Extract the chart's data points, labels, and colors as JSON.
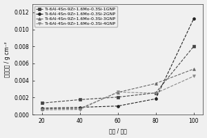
{
  "x": [
    20,
    40,
    60,
    80,
    100
  ],
  "series": [
    {
      "label": "Ti-6Al-4Sn-9Zr-1.6Mo-0.3Si-1GNP",
      "y": [
        0.00135,
        0.00175,
        0.00205,
        0.00255,
        0.008
      ],
      "marker": "s",
      "color": "#444444",
      "linestyle": "--"
    },
    {
      "label": "Ti-6Al-4Sn-9Zr-1.6Mo-0.3Si-2GNP",
      "y": [
        0.00075,
        0.00085,
        0.001,
        0.00185,
        0.01125
      ],
      "marker": "o",
      "color": "#222222",
      "linestyle": "--"
    },
    {
      "label": "Ti-6Al-4Sn-9Zr-1.6Mo-0.3Si-3GNP",
      "y": [
        0.00065,
        0.0007,
        0.0026,
        0.00365,
        0.00535
      ],
      "marker": "^",
      "color": "#666666",
      "linestyle": "--"
    },
    {
      "label": "Ti-6Al-4Sn-9Zr-1.6Mo-0.3Si-4GNP",
      "y": [
        0.00055,
        0.0006,
        0.00265,
        0.0025,
        0.0045
      ],
      "marker": "v",
      "color": "#888888",
      "linestyle": "--"
    }
  ],
  "xlabel": "时间 / 小时",
  "ylabel": "氧化增重 / g cm⁻²",
  "xlim": [
    15,
    105
  ],
  "ylim": [
    0,
    0.013
  ],
  "xticks": [
    20,
    40,
    60,
    80,
    100
  ],
  "yticks": [
    0.0,
    0.002,
    0.004,
    0.006,
    0.008,
    0.01,
    0.012
  ],
  "background_color": "#f0f0f0",
  "plot_bg_color": "#f0f0f0",
  "legend_fontsize": 4.5,
  "axis_fontsize": 5.5,
  "tick_fontsize": 5.5
}
